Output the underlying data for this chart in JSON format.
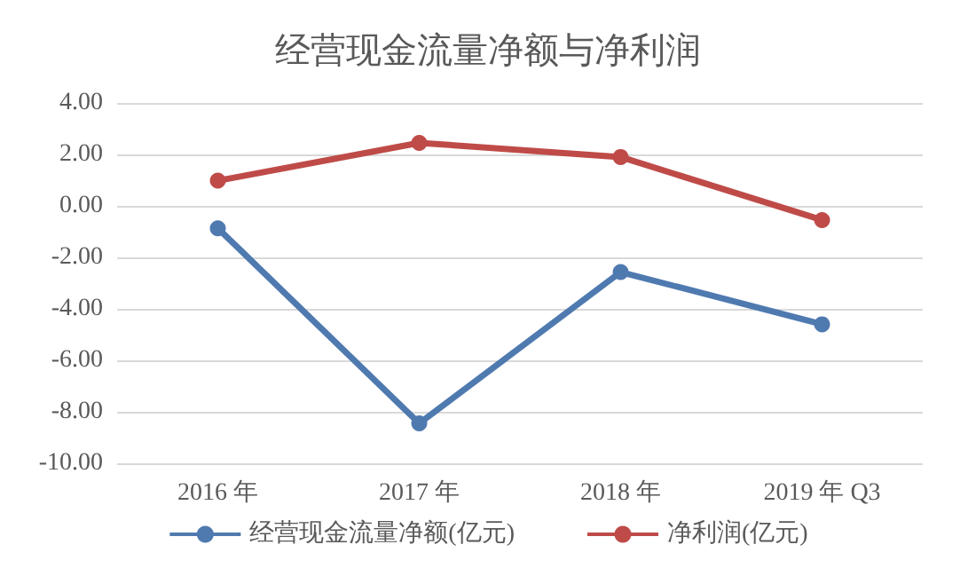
{
  "chart_data": {
    "type": "line",
    "title": "经营现金流量净额与净利润",
    "categories": [
      "2016 年",
      "2017 年",
      "2018 年",
      "2019 年 Q3"
    ],
    "series": [
      {
        "name": "经营现金流量净额(亿元)",
        "color": "#4f7ab0",
        "values": [
          -0.87,
          -8.45,
          -2.57,
          -4.6
        ]
      },
      {
        "name": "净利润(亿元)",
        "color": "#bf4b48",
        "values": [
          0.98,
          2.45,
          1.9,
          -0.55
        ]
      }
    ],
    "ylim": [
      -10,
      4
    ],
    "yticks": [
      {
        "value": -10,
        "label": "-10.00"
      },
      {
        "value": -8,
        "label": "-8.00"
      },
      {
        "value": -6,
        "label": "-6.00"
      },
      {
        "value": -4,
        "label": "-4.00"
      },
      {
        "value": -2,
        "label": "-2.00"
      },
      {
        "value": 0,
        "label": "0.00"
      },
      {
        "value": 2,
        "label": "2.00"
      },
      {
        "value": 4,
        "label": "4.00"
      }
    ],
    "grid": "y",
    "legend": "bottom",
    "marker": "circle",
    "line_style": "solid"
  }
}
